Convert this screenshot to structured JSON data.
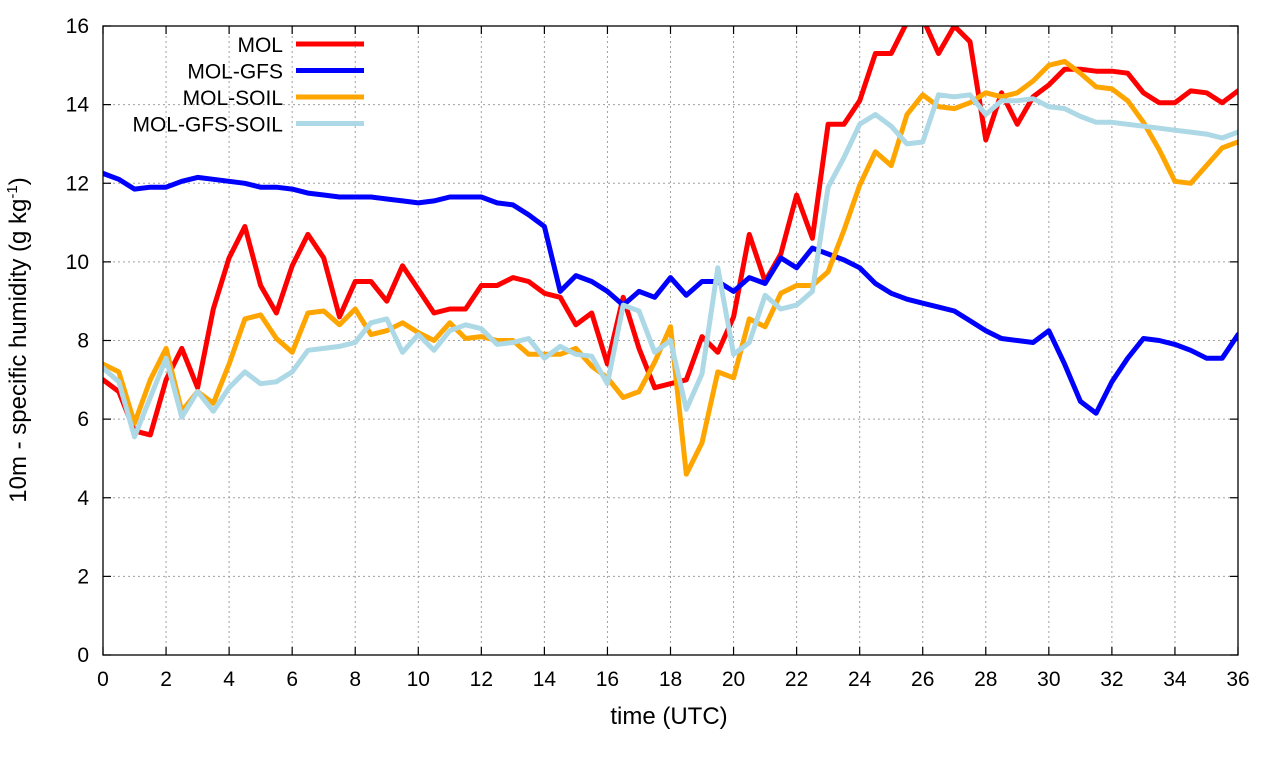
{
  "chart_data": {
    "type": "line",
    "xlabel": "time (UTC)",
    "ylabel": {
      "prefix": "10m - specific humidity (g kg",
      "superscript": "-1",
      "suffix": ")"
    },
    "xlim": [
      0,
      36
    ],
    "ylim": [
      0,
      16
    ],
    "x_ticks": [
      0,
      2,
      4,
      6,
      8,
      10,
      12,
      14,
      16,
      18,
      20,
      22,
      24,
      26,
      28,
      30,
      32,
      34,
      36
    ],
    "y_ticks": [
      0,
      2,
      4,
      6,
      8,
      10,
      12,
      14,
      16
    ],
    "grid": true,
    "legend_position": "top-left",
    "x": [
      0,
      0.5,
      1,
      1.5,
      2,
      2.5,
      3,
      3.5,
      4,
      4.5,
      5,
      5.5,
      6,
      6.5,
      7,
      7.5,
      8,
      8.5,
      9,
      9.5,
      10,
      10.5,
      11,
      11.5,
      12,
      12.5,
      13,
      13.5,
      14,
      14.5,
      15,
      15.5,
      16,
      16.5,
      17,
      17.5,
      18,
      18.5,
      19,
      19.5,
      20,
      20.5,
      21,
      21.5,
      22,
      22.5,
      23,
      23.5,
      24,
      24.5,
      25,
      25.5,
      26,
      26.5,
      27,
      27.5,
      28,
      28.5,
      29,
      29.5,
      30,
      30.5,
      31,
      31.5,
      32,
      32.5,
      33,
      33.5,
      34,
      34.5,
      35,
      35.5,
      36
    ],
    "series": [
      {
        "name": "MOL",
        "color": "#ff0000",
        "values": [
          7.0,
          6.7,
          5.7,
          5.6,
          7.0,
          7.8,
          6.8,
          8.8,
          10.1,
          10.9,
          9.4,
          8.7,
          9.9,
          10.7,
          10.1,
          8.6,
          9.5,
          9.5,
          9.0,
          9.9,
          9.3,
          8.7,
          8.8,
          8.8,
          9.4,
          9.4,
          9.6,
          9.5,
          9.2,
          9.1,
          8.4,
          8.7,
          7.4,
          9.1,
          7.8,
          6.8,
          6.9,
          7.0,
          8.1,
          7.7,
          8.6,
          10.7,
          9.5,
          10.2,
          11.7,
          10.6,
          13.5,
          13.5,
          14.1,
          15.3,
          15.3,
          16.1,
          16.2,
          15.3,
          16.0,
          15.6,
          13.1,
          14.3,
          13.5,
          14.2,
          14.5,
          14.9,
          14.9,
          14.85,
          14.85,
          14.8,
          14.3,
          14.05,
          14.05,
          14.35,
          14.3,
          14.05,
          14.35
        ]
      },
      {
        "name": "MOL-GFS",
        "color": "#0000ff",
        "values": [
          12.25,
          12.1,
          11.85,
          11.9,
          11.9,
          12.05,
          12.15,
          12.1,
          12.05,
          12.0,
          11.9,
          11.9,
          11.85,
          11.75,
          11.7,
          11.65,
          11.65,
          11.65,
          11.6,
          11.55,
          11.5,
          11.55,
          11.65,
          11.65,
          11.65,
          11.5,
          11.45,
          11.2,
          10.9,
          9.25,
          9.65,
          9.5,
          9.25,
          8.9,
          9.25,
          9.1,
          9.6,
          9.15,
          9.5,
          9.5,
          9.25,
          9.6,
          9.45,
          10.1,
          9.85,
          10.35,
          10.2,
          10.05,
          9.85,
          9.45,
          9.2,
          9.05,
          8.95,
          8.85,
          8.75,
          8.5,
          8.25,
          8.05,
          8.0,
          7.95,
          8.25,
          7.4,
          6.45,
          6.15,
          6.95,
          7.55,
          8.05,
          8.0,
          7.9,
          7.75,
          7.55,
          7.55,
          8.15
        ]
      },
      {
        "name": "MOL-SOIL",
        "color": "#ffa500",
        "values": [
          7.4,
          7.2,
          5.9,
          7.0,
          7.8,
          6.2,
          6.7,
          6.4,
          7.4,
          8.55,
          8.65,
          8.05,
          7.7,
          8.7,
          8.75,
          8.4,
          8.8,
          8.15,
          8.25,
          8.45,
          8.2,
          8.0,
          8.45,
          8.05,
          8.1,
          8.0,
          8.0,
          7.65,
          7.65,
          7.65,
          7.8,
          7.35,
          7.05,
          6.55,
          6.7,
          7.45,
          8.35,
          4.6,
          5.4,
          7.2,
          7.05,
          8.55,
          8.35,
          9.2,
          9.4,
          9.4,
          9.75,
          10.8,
          11.95,
          12.8,
          12.45,
          13.75,
          14.25,
          13.95,
          13.9,
          14.05,
          14.3,
          14.2,
          14.3,
          14.6,
          15.0,
          15.1,
          14.8,
          14.45,
          14.4,
          14.1,
          13.55,
          12.85,
          12.05,
          12.0,
          12.45,
          12.9,
          13.05
        ]
      },
      {
        "name": "MOL-GFS-SOIL",
        "color": "#add8e6",
        "values": [
          7.3,
          6.95,
          5.55,
          6.55,
          7.55,
          6.05,
          6.7,
          6.2,
          6.8,
          7.2,
          6.9,
          6.95,
          7.2,
          7.75,
          7.8,
          7.85,
          7.95,
          8.45,
          8.55,
          7.7,
          8.15,
          7.75,
          8.25,
          8.4,
          8.3,
          7.9,
          7.95,
          8.05,
          7.55,
          7.85,
          7.65,
          7.6,
          6.9,
          8.9,
          8.75,
          7.7,
          8.0,
          6.25,
          7.15,
          9.85,
          7.65,
          7.95,
          9.15,
          8.8,
          8.9,
          9.25,
          11.9,
          12.65,
          13.5,
          13.75,
          13.45,
          13.0,
          13.05,
          14.25,
          14.2,
          14.25,
          13.75,
          14.1,
          14.1,
          14.15,
          13.95,
          13.9,
          13.7,
          13.55,
          13.55,
          13.5,
          13.45,
          13.4,
          13.35,
          13.3,
          13.25,
          13.15,
          13.3
        ]
      }
    ]
  }
}
